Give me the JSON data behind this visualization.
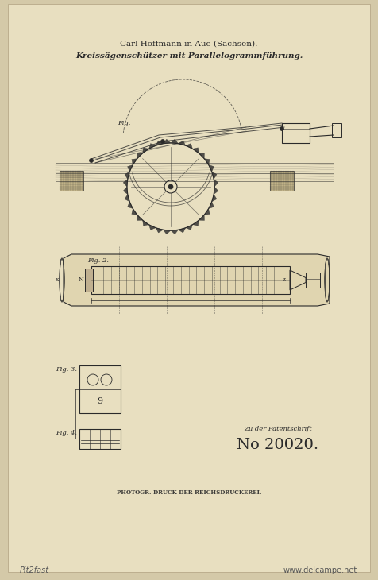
{
  "bg_color": "#d4c9a8",
  "paper_color": "#e8dfc0",
  "line_color": "#2a2a2a",
  "title_line1": "Carl Hoffmann in Aue (Sachsen).",
  "title_line2": "Kreissägenschützer mit Parallelogrammführung.",
  "patent_label": "Zu der Patentschrift",
  "patent_number": "No 20020.",
  "bottom_text": "PHOTOGR. DRUCK DER REICHSDRUCKEREI.",
  "watermark_top": "Pit2fast",
  "watermark_bottom": "www.delcampe.net",
  "fig_width": 4.76,
  "fig_height": 7.3,
  "dpi": 100
}
